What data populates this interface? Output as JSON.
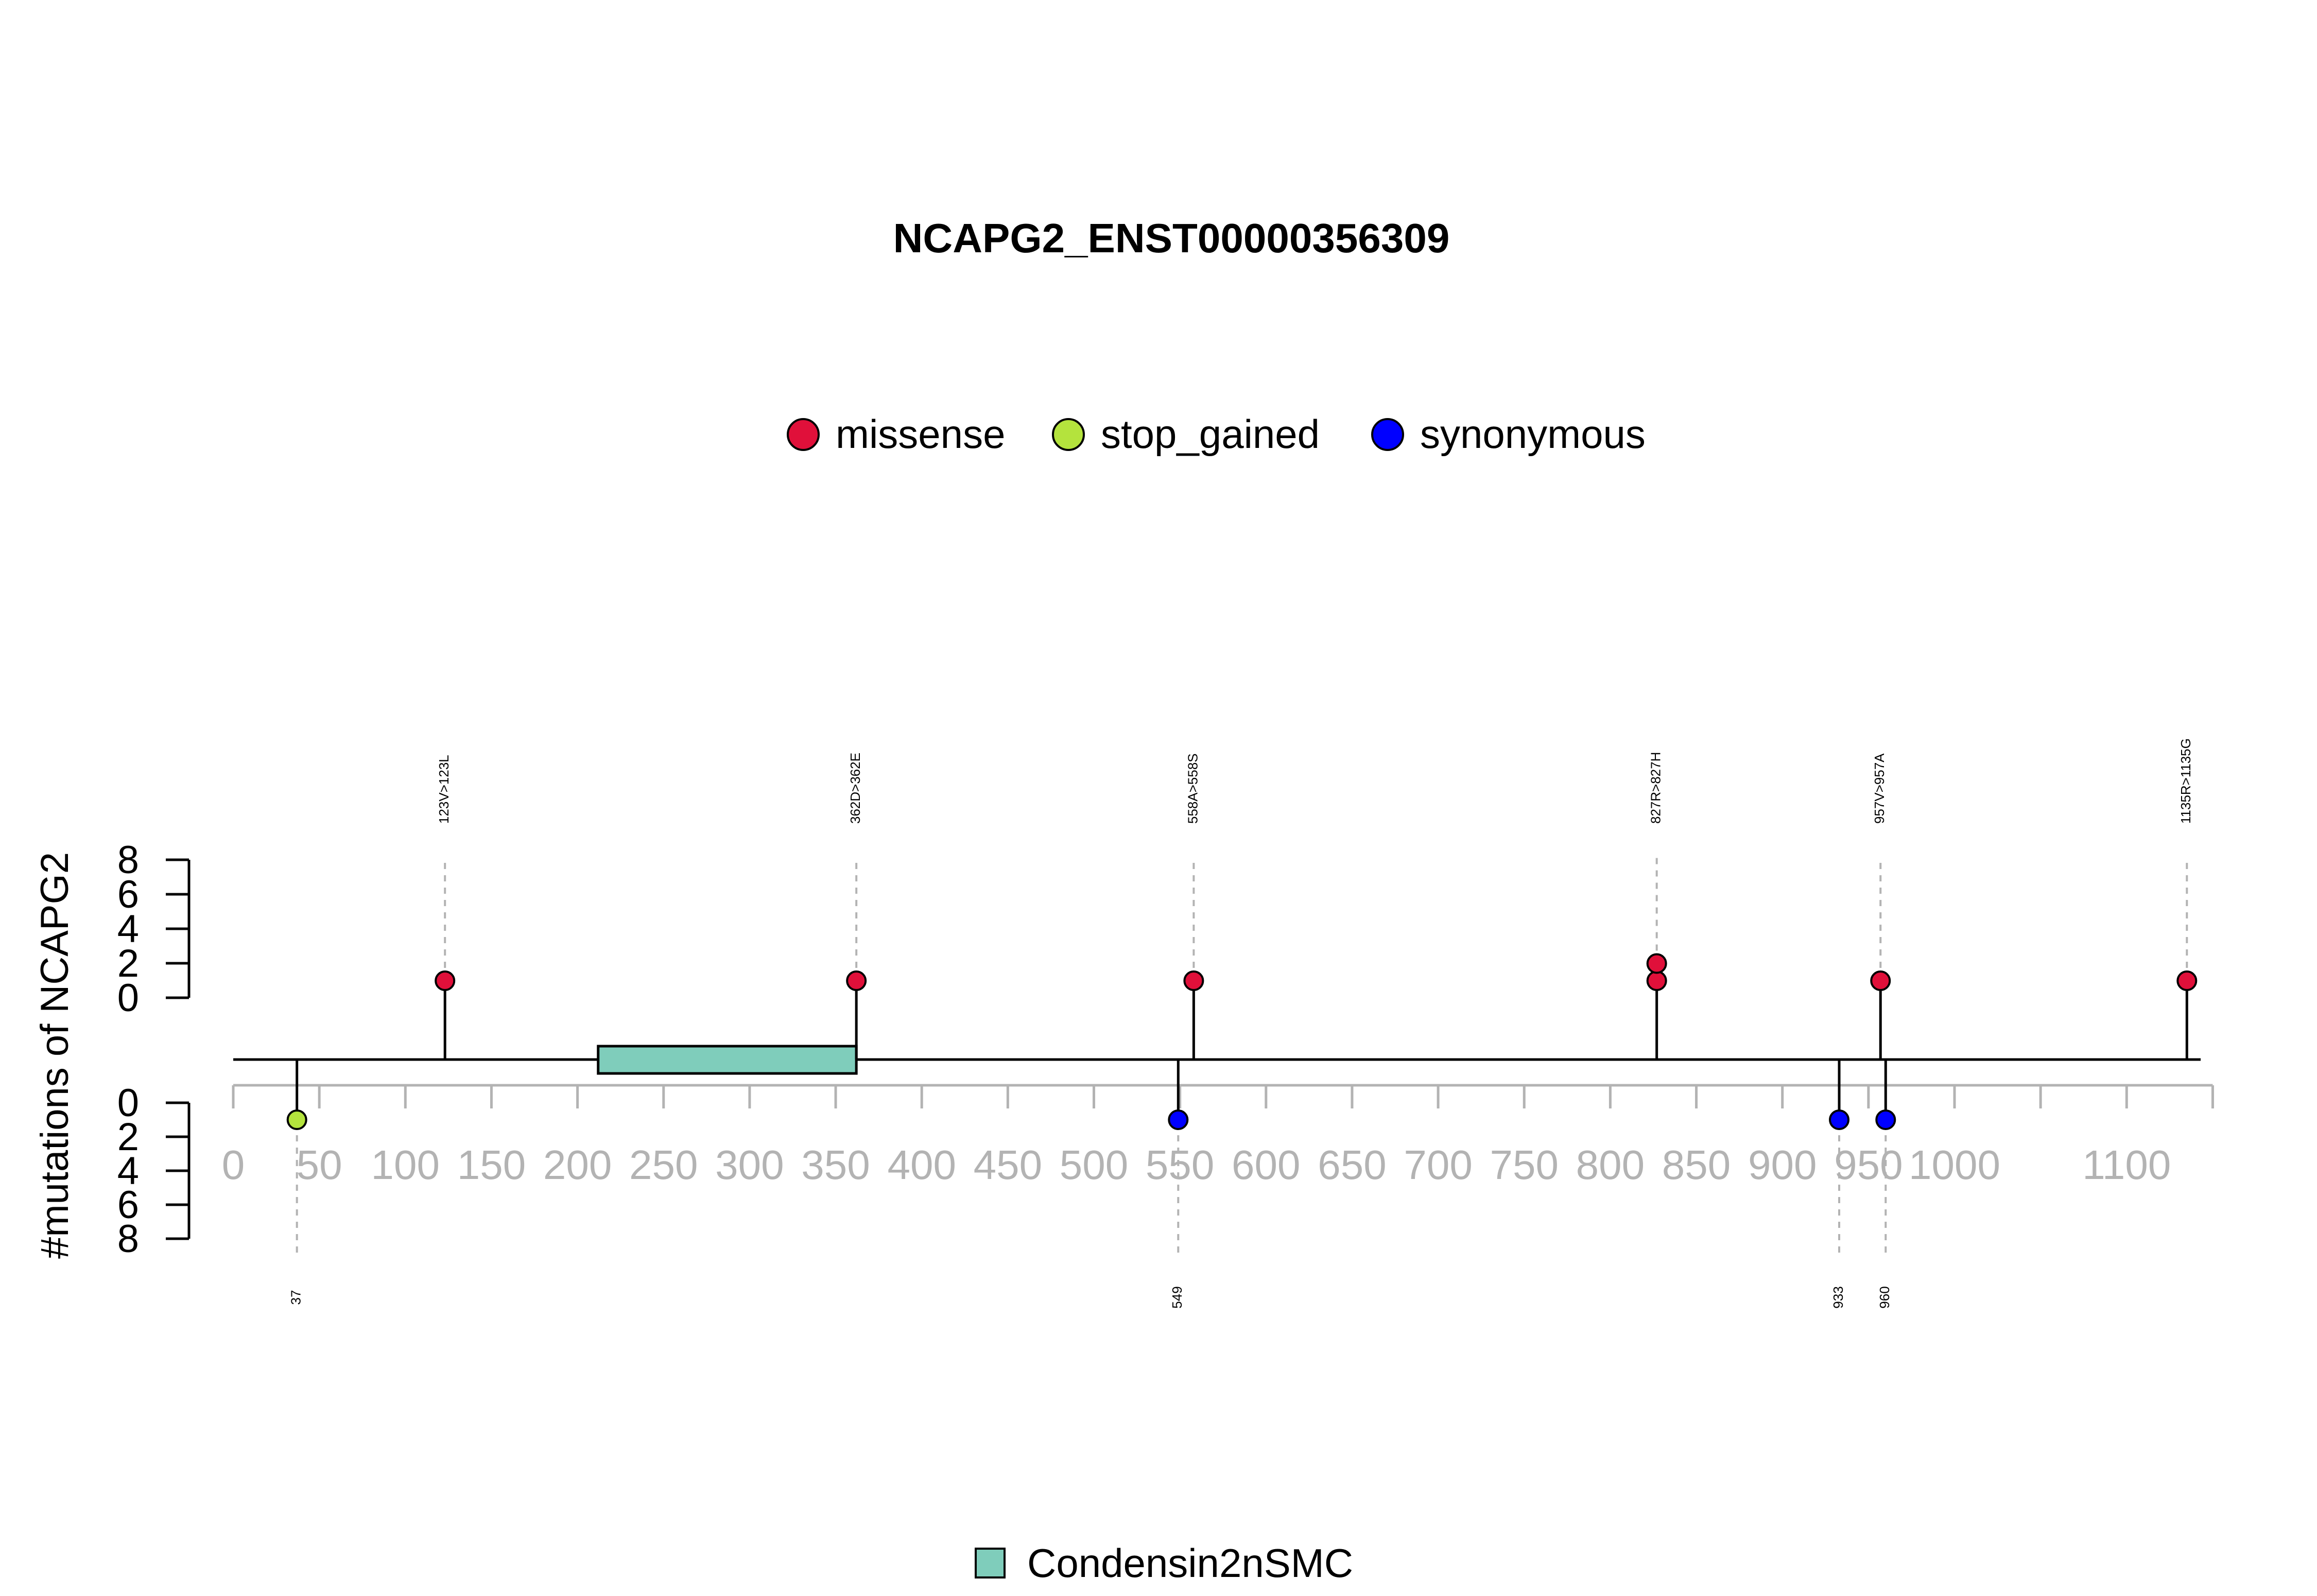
{
  "chart_data": {
    "type": "lollipop",
    "title": "NCAPG2_ENST00000356309",
    "ylabel": "#mutations of NCAPG2",
    "protein_length": 1143,
    "xlim": [
      0,
      1150
    ],
    "x_ticks": [
      0,
      50,
      100,
      150,
      200,
      250,
      300,
      350,
      400,
      450,
      500,
      550,
      600,
      650,
      700,
      750,
      800,
      850,
      900,
      950,
      1000,
      1100
    ],
    "y_ticks": [
      0,
      2,
      4,
      6,
      8
    ],
    "mutation_types": [
      {
        "name": "missense",
        "color": "#E0103A"
      },
      {
        "name": "stop_gained",
        "color": "#B4E33D"
      },
      {
        "name": "synonymous",
        "color": "#0000FF"
      }
    ],
    "domains": [
      {
        "name": "Condensin2nSMC",
        "start": 212,
        "end": 362,
        "color": "#7FCDBB"
      }
    ],
    "upper_mutations": [
      {
        "position": 123,
        "label": "123V>123L",
        "type": "missense",
        "count": 1
      },
      {
        "position": 362,
        "label": "362D>362E",
        "type": "missense",
        "count": 1
      },
      {
        "position": 558,
        "label": "558A>558S",
        "type": "missense",
        "count": 1
      },
      {
        "position": 827,
        "label": "827R>827H",
        "type": "missense",
        "count": 2
      },
      {
        "position": 957,
        "label": "957V>957A",
        "type": "missense",
        "count": 1
      },
      {
        "position": 1135,
        "label": "1135R>1135G",
        "type": "missense",
        "count": 1
      }
    ],
    "lower_mutations": [
      {
        "position": 37,
        "label": "37",
        "type": "stop_gained",
        "count": 1
      },
      {
        "position": 549,
        "label": "549",
        "type": "synonymous",
        "count": 1
      },
      {
        "position": 933,
        "label": "933",
        "type": "synonymous",
        "count": 1
      },
      {
        "position": 960,
        "label": "960",
        "type": "synonymous",
        "count": 1
      }
    ]
  }
}
